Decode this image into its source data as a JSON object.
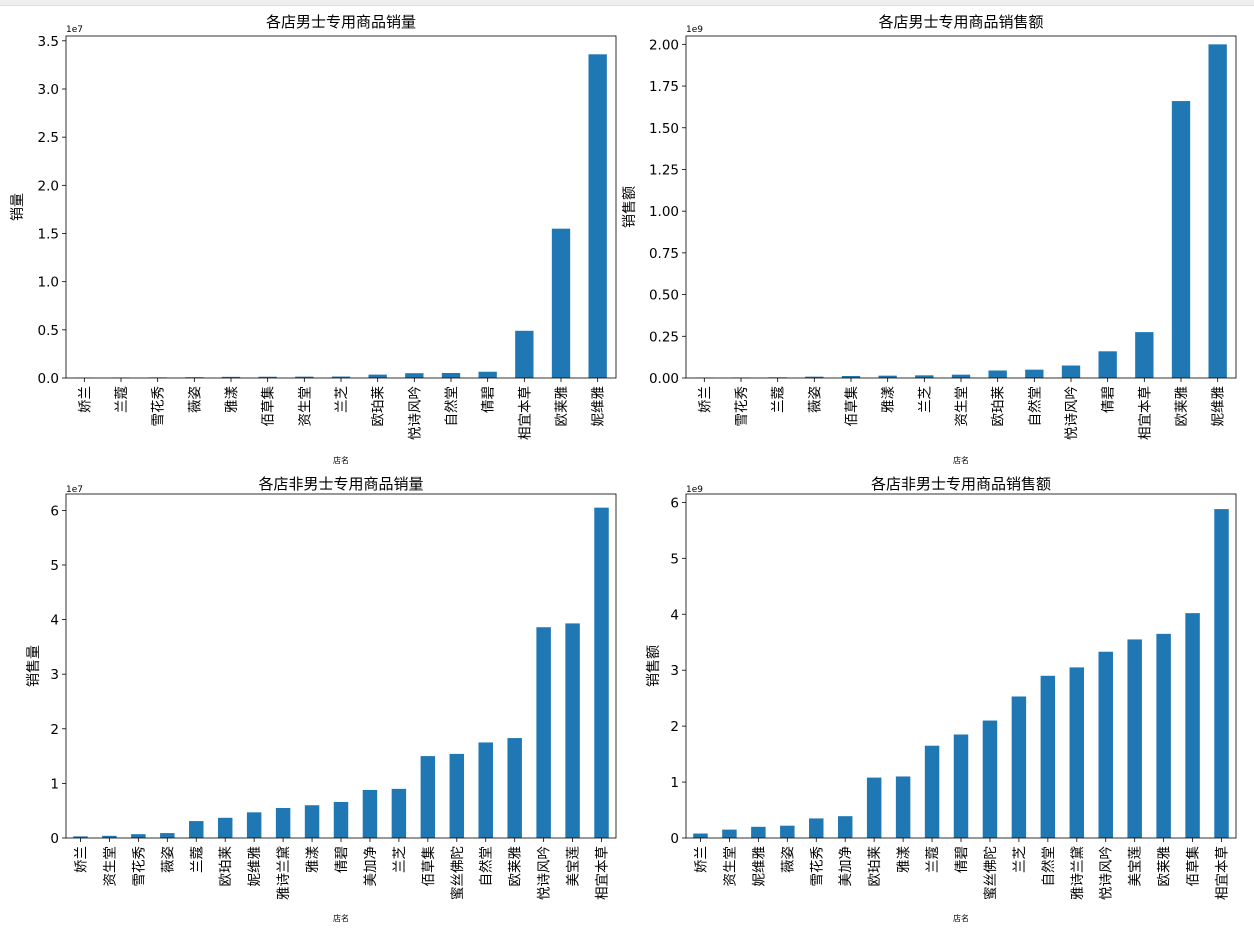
{
  "chart_data": [
    {
      "type": "bar",
      "title": "各店男士专用商品销量",
      "xlabel": "店名",
      "ylabel": "销量",
      "offset_text": "1e7",
      "yticks": [
        "0.0",
        "0.5",
        "1.0",
        "1.5",
        "2.0",
        "2.5",
        "3.0",
        "3.5"
      ],
      "ylim": [
        0,
        35500000
      ],
      "color": "#1f77b4",
      "grid": false,
      "categories": [
        "娇兰",
        "兰蔻",
        "雪花秀",
        "薇姿",
        "雅漾",
        "佰草集",
        "资生堂",
        "兰芝",
        "欧珀莱",
        "悦诗风吟",
        "自然堂",
        "倩碧",
        "相宜本草",
        "欧莱雅",
        "妮维雅"
      ],
      "values": [
        30000,
        50000,
        60000,
        80000,
        120000,
        130000,
        140000,
        150000,
        350000,
        500000,
        520000,
        650000,
        4900000,
        15500000,
        33600000
      ]
    },
    {
      "type": "bar",
      "title": "各店男士专用商品销售额",
      "xlabel": "店名",
      "ylabel": "销售额",
      "offset_text": "1e9",
      "yticks": [
        "0.00",
        "0.25",
        "0.50",
        "0.75",
        "1.00",
        "1.25",
        "1.50",
        "1.75",
        "2.00"
      ],
      "ylim": [
        0,
        2050000000
      ],
      "color": "#1f77b4",
      "grid": false,
      "categories": [
        "娇兰",
        "雪花秀",
        "兰蔻",
        "薇姿",
        "佰草集",
        "雅漾",
        "兰芝",
        "资生堂",
        "欧珀莱",
        "自然堂",
        "悦诗风吟",
        "倩碧",
        "相宜本草",
        "欧莱雅",
        "妮维雅"
      ],
      "values": [
        2000000,
        3000000,
        4000000,
        8000000,
        12000000,
        14000000,
        16000000,
        20000000,
        45000000,
        50000000,
        75000000,
        160000000,
        275000000,
        1660000000,
        2000000000
      ]
    },
    {
      "type": "bar",
      "title": "各店非男士专用商品销量",
      "xlabel": "店名",
      "ylabel": "销售量",
      "offset_text": "1e7",
      "yticks": [
        "0",
        "1",
        "2",
        "3",
        "4",
        "5",
        "6"
      ],
      "ylim": [
        0,
        63000000
      ],
      "color": "#1f77b4",
      "grid": false,
      "categories": [
        "娇兰",
        "资生堂",
        "雪花秀",
        "薇姿",
        "兰蔻",
        "欧珀莱",
        "妮维雅",
        "雅诗兰黛",
        "雅漾",
        "倩碧",
        "美加净",
        "兰芝",
        "佰草集",
        "蜜丝佛陀",
        "自然堂",
        "欧莱雅",
        "悦诗风吟",
        "美宝莲",
        "相宜本草"
      ],
      "values": [
        300000,
        400000,
        700000,
        900000,
        3100000,
        3700000,
        4700000,
        5500000,
        6000000,
        6600000,
        8800000,
        9000000,
        15000000,
        15400000,
        17500000,
        18300000,
        38600000,
        39300000,
        60500000
      ]
    },
    {
      "type": "bar",
      "title": "各店非男士专用商品销售额",
      "xlabel": "店名",
      "ylabel": "销售额",
      "offset_text": "1e9",
      "yticks": [
        "0",
        "1",
        "2",
        "3",
        "4",
        "5",
        "6"
      ],
      "ylim": [
        0,
        6150000000
      ],
      "color": "#1f77b4",
      "grid": false,
      "categories": [
        "娇兰",
        "资生堂",
        "妮维雅",
        "薇姿",
        "雪花秀",
        "美加净",
        "欧珀莱",
        "雅漾",
        "兰蔻",
        "倩碧",
        "蜜丝佛陀",
        "兰芝",
        "自然堂",
        "雅诗兰黛",
        "悦诗风吟",
        "美宝莲",
        "欧莱雅",
        "佰草集",
        "相宜本草"
      ],
      "values": [
        80000000,
        150000000,
        200000000,
        220000000,
        350000000,
        390000000,
        1080000000,
        1100000000,
        1650000000,
        1850000000,
        2100000000,
        2530000000,
        2900000000,
        3050000000,
        3330000000,
        3550000000,
        3650000000,
        4020000000,
        5880000000
      ]
    }
  ]
}
